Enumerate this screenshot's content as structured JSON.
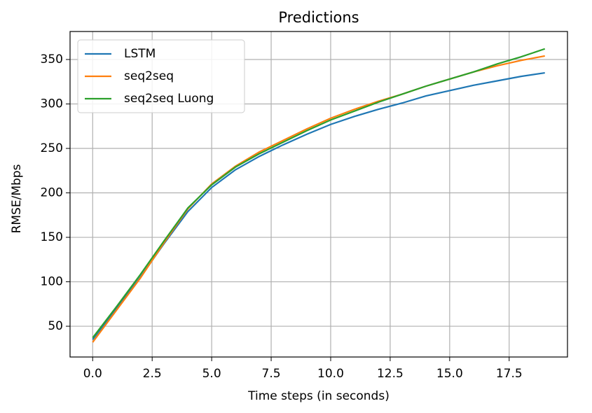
{
  "chart_data": {
    "type": "line",
    "title": "Predictions",
    "x_label": "Time steps (in seconds)",
    "y_label": "RMSE/Mbps",
    "x": [
      0,
      1,
      2,
      3,
      4,
      5,
      6,
      7,
      8,
      9,
      10,
      11,
      12,
      13,
      14,
      15,
      16,
      17,
      18,
      19
    ],
    "series": [
      {
        "name": "LSTM",
        "color": "#1f77b4",
        "values": [
          35,
          70,
          105,
          143,
          179,
          206,
          226,
          241,
          254,
          266,
          277,
          286,
          294,
          301,
          309,
          315,
          321,
          326,
          331,
          335
        ]
      },
      {
        "name": "seq2seq",
        "color": "#ff7f0e",
        "values": [
          32,
          68,
          104,
          144,
          182,
          210,
          230,
          246,
          259,
          272,
          284,
          294,
          303,
          311,
          320,
          328,
          336,
          343,
          349,
          354
        ]
      },
      {
        "name": "seq2seq Luong",
        "color": "#2ca02c",
        "values": [
          37,
          72,
          108,
          146,
          183,
          209,
          229,
          244,
          257,
          270,
          282,
          292,
          302,
          311,
          320,
          328,
          336,
          345,
          353,
          362
        ]
      }
    ],
    "xlim": [
      -0.95,
      19.95
    ],
    "ylim": [
      15.4,
      381.5
    ],
    "xticks": [
      {
        "value": 0,
        "label": "0.0"
      },
      {
        "value": 2.5,
        "label": "2.5"
      },
      {
        "value": 5,
        "label": "5.0"
      },
      {
        "value": 7.5,
        "label": "7.5"
      },
      {
        "value": 10,
        "label": "10.0"
      },
      {
        "value": 12.5,
        "label": "12.5"
      },
      {
        "value": 15,
        "label": "15.0"
      },
      {
        "value": 17.5,
        "label": "17.5"
      }
    ],
    "yticks": [
      50,
      100,
      150,
      200,
      250,
      300,
      350
    ],
    "grid": true,
    "legend": "upper-left"
  }
}
